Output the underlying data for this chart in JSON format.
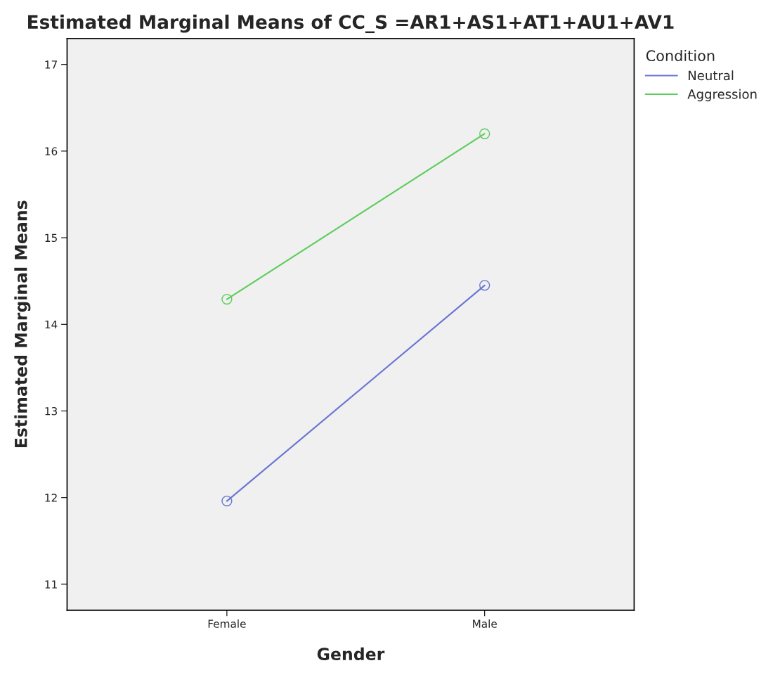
{
  "chart_data": {
    "type": "line",
    "title": "Estimated Marginal Means of CC_S =AR1+AS1+AT1+AU1+AV1",
    "xlabel": "Gender",
    "ylabel": "Estimated Marginal Means",
    "legend_title": "Condition",
    "categories": [
      "Female",
      "Male"
    ],
    "series": [
      {
        "name": "Neutral",
        "color": "#6a74d4",
        "values": [
          11.96,
          14.45
        ]
      },
      {
        "name": "Aggression",
        "color": "#5ccc5c",
        "values": [
          14.29,
          16.2
        ]
      }
    ],
    "ylim": [
      10.7,
      17.3
    ],
    "yticks": [
      11,
      12,
      13,
      14,
      15,
      16,
      17
    ],
    "grid": false,
    "legend": "top right",
    "marker": "circle",
    "line_style": "solid"
  }
}
